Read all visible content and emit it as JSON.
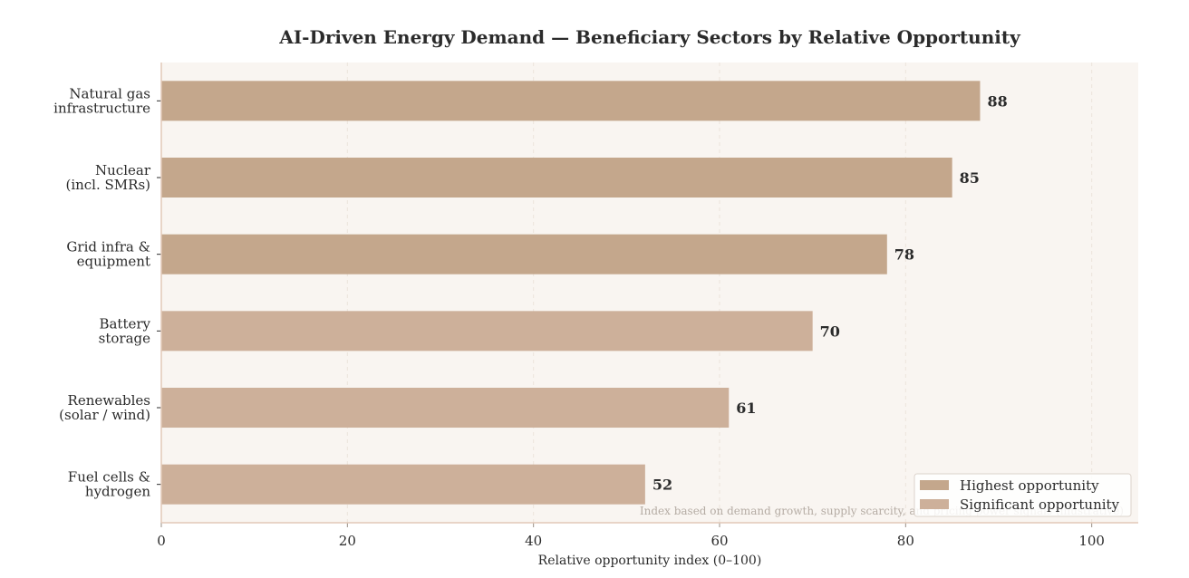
{
  "chart_data": {
    "type": "bar",
    "orientation": "horizontal",
    "title": "AI-Driven Energy Demand — Beneficiary Sectors by Relative Opportunity",
    "xlabel": "Relative opportunity index (0–100)",
    "ylabel": "",
    "xlim": [
      0,
      105
    ],
    "xticks": [
      "0",
      "20",
      "40",
      "60",
      "80",
      "100"
    ],
    "grid": "vertical dashed",
    "categories": [
      [
        "Natural gas",
        "infrastructure"
      ],
      [
        "Nuclear",
        "(incl. SMRs)"
      ],
      [
        "Grid infra &",
        "equipment"
      ],
      [
        "Battery",
        "storage"
      ],
      [
        "Renewables",
        "(solar / wind)"
      ],
      [
        "Fuel cells &",
        "hydrogen"
      ]
    ],
    "values": [
      88,
      85,
      78,
      70,
      61,
      52
    ],
    "groups": [
      "Highest opportunity",
      "Highest opportunity",
      "Highest opportunity",
      "Significant opportunity",
      "Significant opportunity",
      "Significant opportunity"
    ],
    "legend": {
      "placement": "bottom-right",
      "entries": [
        {
          "name": "Highest opportunity",
          "color": "#c4a78c"
        },
        {
          "name": "Significant opportunity",
          "color": "#cdb09a"
        }
      ]
    },
    "annotation": "Index based on demand growth, supply scarcity, and pricing power signals (illustrative)",
    "colors": {
      "plot_bg": "#f9f5f1",
      "axis": "#e2c9b8",
      "grid": "#ece4dc"
    }
  }
}
